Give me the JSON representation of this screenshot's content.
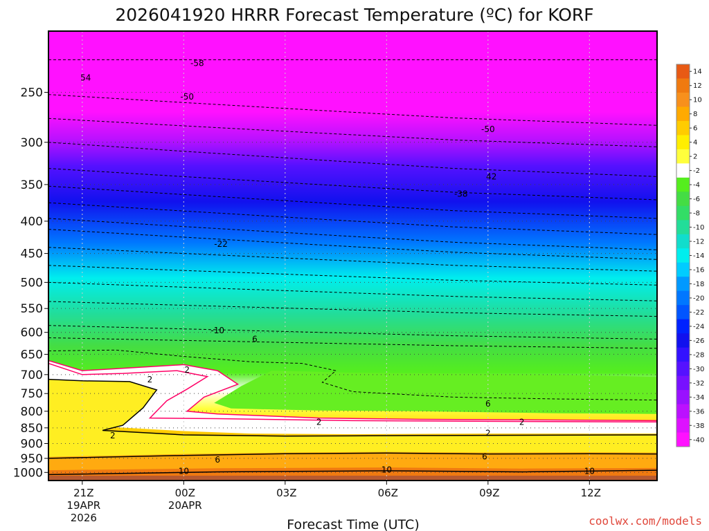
{
  "title": "2026041920 HRRR Forecast Temperature (ºC) for KORF",
  "watermark": "coolwx.com/models",
  "chart_data": {
    "type": "heatmap",
    "title": "2026041920 HRRR Forecast Temperature (ºC) for KORF",
    "xlabel": "Forecast Time (UTC)",
    "ylabel": "",
    "x_ticks": [
      {
        "hour": 0,
        "lines": [
          "21Z",
          "19APR",
          "2026"
        ]
      },
      {
        "hour": 3,
        "lines": [
          "00Z",
          "20APR"
        ]
      },
      {
        "hour": 6,
        "lines": [
          "03Z"
        ]
      },
      {
        "hour": 9,
        "lines": [
          "06Z"
        ]
      },
      {
        "hour": 12,
        "lines": [
          "09Z"
        ]
      },
      {
        "hour": 15,
        "lines": [
          "12Z"
        ]
      }
    ],
    "xlim": [
      -1,
      17
    ],
    "y_ticks": [
      250,
      300,
      350,
      400,
      450,
      500,
      550,
      600,
      650,
      700,
      750,
      800,
      850,
      900,
      950,
      1000
    ],
    "ylim": [
      1030,
      200
    ],
    "grid": true,
    "colorbar": {
      "labels": [
        "14",
        "12",
        "10",
        "8",
        "6",
        "4",
        "2",
        "-2",
        "-4",
        "-6",
        "-8",
        "-10",
        "-12",
        "-14",
        "-16",
        "-18",
        "-20",
        "-22",
        "-24",
        "-26",
        "-28",
        "-30",
        "-32",
        "-34",
        "-36",
        "-38",
        "-40"
      ],
      "colors": [
        "#e85a14",
        "#f07a10",
        "#f8901c",
        "#ffaa00",
        "#ffcc00",
        "#ffee00",
        "#ffff3c",
        "#ffffff",
        "#55ee1e",
        "#44dd44",
        "#33dd66",
        "#22dd99",
        "#11ddcc",
        "#00eeee",
        "#00ccff",
        "#0099ff",
        "#0077ff",
        "#0055ff",
        "#0022ff",
        "#1111ee",
        "#3311ff",
        "#5511ff",
        "#7711ff",
        "#9911ff",
        "#bb11ff",
        "#dd11ff",
        "#ff11ff"
      ]
    },
    "freezing_color": "#ff0066",
    "contour_labels": [
      {
        "text": "-58",
        "hour": 3.4,
        "pressure": 225
      },
      {
        "text": "54",
        "hour": 0.1,
        "pressure": 237
      },
      {
        "text": "-50",
        "hour": 3.1,
        "pressure": 254
      },
      {
        "text": "-50",
        "hour": 12.0,
        "pressure": 286
      },
      {
        "text": "42",
        "hour": 12.1,
        "pressure": 340
      },
      {
        "text": "-38",
        "hour": 11.2,
        "pressure": 362
      },
      {
        "text": "-22",
        "hour": 4.1,
        "pressure": 435
      },
      {
        "text": "-10",
        "hour": 4.0,
        "pressure": 596
      },
      {
        "text": "6",
        "hour": 5.1,
        "pressure": 615
      },
      {
        "text": "2",
        "hour": 3.1,
        "pressure": 688
      },
      {
        "text": "2",
        "hour": 2.0,
        "pressure": 713
      },
      {
        "text": "6",
        "hour": 12.0,
        "pressure": 779
      },
      {
        "text": "2",
        "hour": 7.0,
        "pressure": 832
      },
      {
        "text": "2",
        "hour": 13.0,
        "pressure": 832
      },
      {
        "text": "2",
        "hour": 0.9,
        "pressure": 874
      },
      {
        "text": "2",
        "hour": 12.0,
        "pressure": 867
      },
      {
        "text": "6",
        "hour": 11.9,
        "pressure": 944
      },
      {
        "text": "6",
        "hour": 4.0,
        "pressure": 955
      },
      {
        "text": "10",
        "hour": 3.0,
        "pressure": 995
      },
      {
        "text": "10",
        "hour": 9.0,
        "pressure": 990
      },
      {
        "text": "10",
        "hour": 15.0,
        "pressure": 996
      }
    ]
  }
}
